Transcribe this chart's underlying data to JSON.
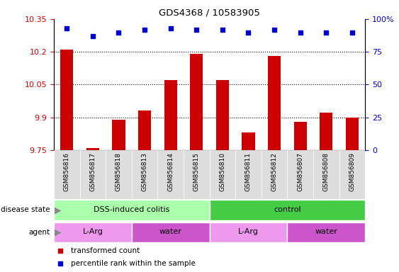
{
  "title": "GDS4368 / 10583905",
  "samples": [
    "GSM856816",
    "GSM856817",
    "GSM856818",
    "GSM856813",
    "GSM856814",
    "GSM856815",
    "GSM856810",
    "GSM856811",
    "GSM856812",
    "GSM856807",
    "GSM856808",
    "GSM856809"
  ],
  "bar_values": [
    10.21,
    9.76,
    9.89,
    9.93,
    10.07,
    10.19,
    10.07,
    9.83,
    10.18,
    9.88,
    9.92,
    9.9
  ],
  "dot_values": [
    93,
    87,
    90,
    92,
    93,
    92,
    92,
    90,
    92,
    90,
    90,
    90
  ],
  "ylim_left": [
    9.75,
    10.35
  ],
  "ylim_right": [
    0,
    100
  ],
  "yticks_left": [
    9.75,
    9.9,
    10.05,
    10.2,
    10.35
  ],
  "yticks_right": [
    0,
    25,
    50,
    75,
    100
  ],
  "bar_color": "#cc0000",
  "dot_color": "#0000cc",
  "bar_width": 0.5,
  "disease_state_groups": [
    {
      "label": "DSS-induced colitis",
      "start": 0,
      "end": 5,
      "color": "#aaffaa"
    },
    {
      "label": "control",
      "start": 6,
      "end": 11,
      "color": "#44cc44"
    }
  ],
  "agent_groups": [
    {
      "label": "L-Arg",
      "start": 0,
      "end": 2,
      "color": "#ee99ee"
    },
    {
      "label": "water",
      "start": 3,
      "end": 5,
      "color": "#cc55cc"
    },
    {
      "label": "L-Arg",
      "start": 6,
      "end": 8,
      "color": "#ee99ee"
    },
    {
      "label": "water",
      "start": 9,
      "end": 11,
      "color": "#cc55cc"
    }
  ],
  "legend_items": [
    {
      "label": "transformed count",
      "color": "#cc0000"
    },
    {
      "label": "percentile rank within the sample",
      "color": "#0000cc"
    }
  ],
  "background_color": "#ffffff",
  "tick_label_color_left": "#cc0000",
  "tick_label_color_right": "#0000cc",
  "xtick_bg_color": "#dddddd"
}
